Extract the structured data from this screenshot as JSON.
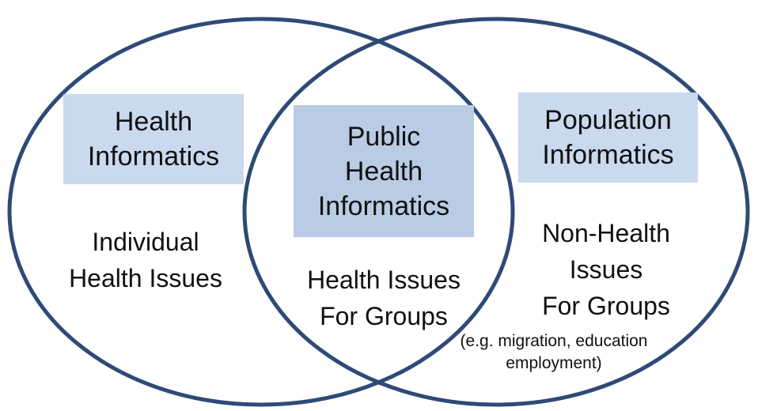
{
  "colors": {
    "circle_stroke": "#2e4a77",
    "box_light": "#c9d9ee",
    "box_medium": "#b9cce4"
  },
  "left": {
    "title_lines": [
      "Health",
      "Informatics"
    ],
    "description_lines": [
      "Individual",
      "Health Issues"
    ]
  },
  "center": {
    "title_lines": [
      "Public",
      "Health",
      "Informatics"
    ],
    "description_lines": [
      "Health Issues",
      "For Groups"
    ]
  },
  "right": {
    "title_lines": [
      "Population",
      "Informatics"
    ],
    "description_lines": [
      "Non-Health",
      "Issues",
      "For Groups"
    ],
    "note_lines": [
      "(e.g. migration, education",
      "employment)"
    ]
  }
}
